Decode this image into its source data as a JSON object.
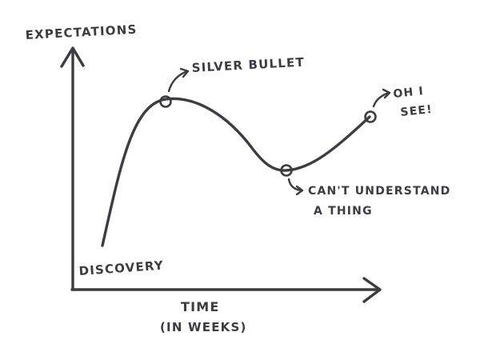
{
  "colors": {
    "ink": "#3c3c44",
    "paper": "#ffffff"
  },
  "axes": {
    "y_label": "EXPECTATIONS",
    "x_label_line1": "TIME",
    "x_label_line2": "(IN WEEKS)"
  },
  "stages": [
    {
      "label_lines": [
        "DISCOVERY"
      ]
    },
    {
      "label_lines": [
        "SILVER BULLET"
      ]
    },
    {
      "label_lines": [
        "CAN'T UNDERSTAND",
        "A THING"
      ]
    },
    {
      "label_lines": [
        "OH I",
        "SEE!"
      ]
    }
  ]
}
